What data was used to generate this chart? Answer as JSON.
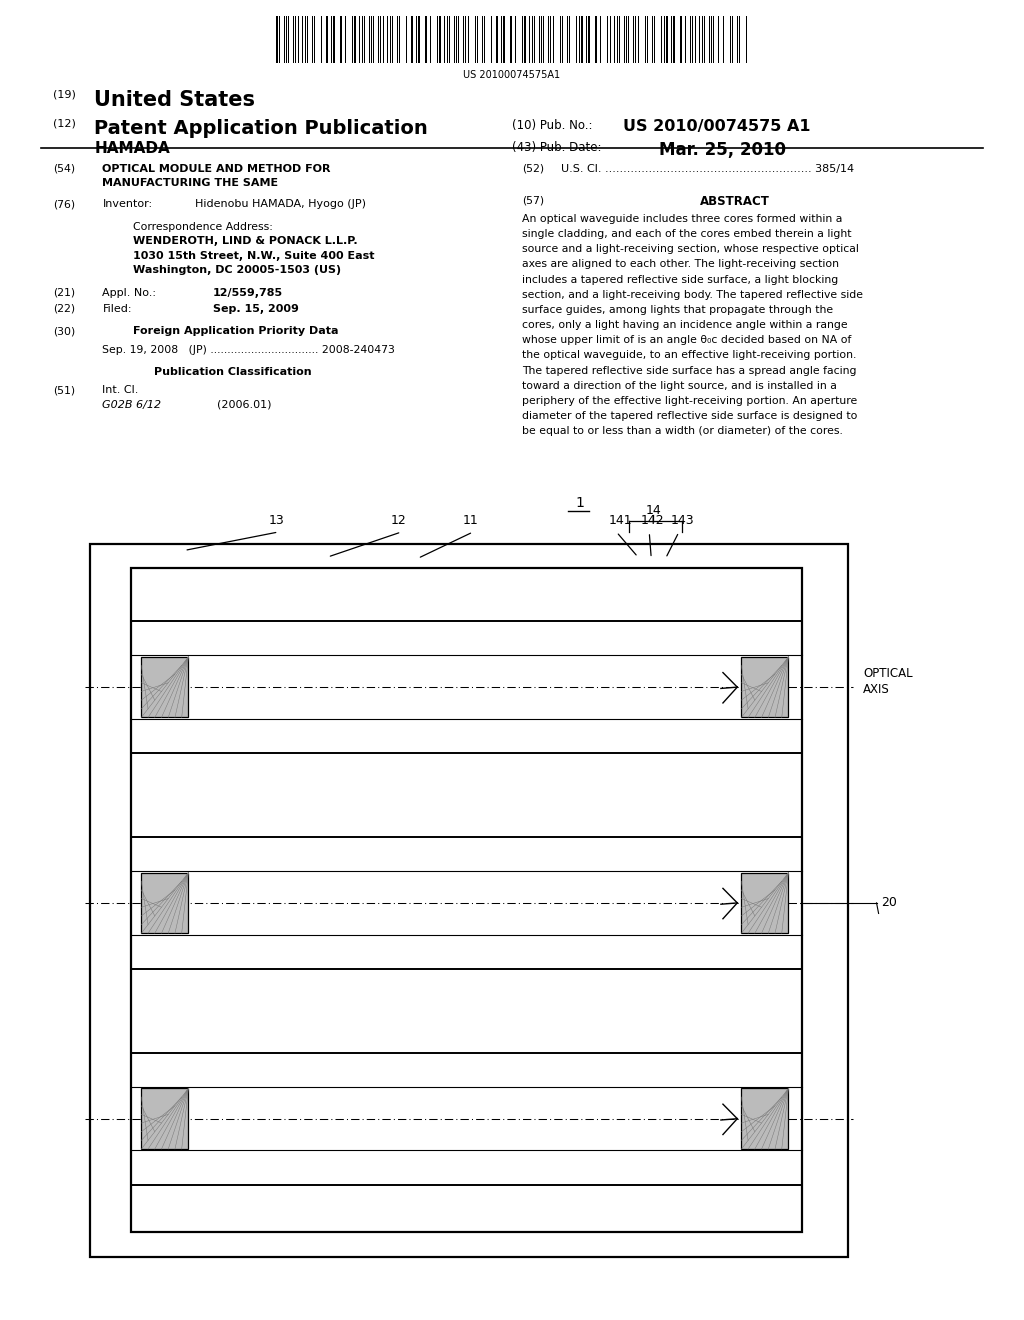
{
  "background_color": "#ffffff",
  "page_width": 10.24,
  "page_height": 13.2,
  "barcode_text": "US 20100074575A1",
  "abstract_text_lines": [
    "An optical waveguide includes three cores formed within a",
    "single cladding, and each of the cores embed therein a light",
    "source and a light-receiving section, whose respective optical",
    "axes are aligned to each other. The light-receiving section",
    "includes a tapered reflective side surface, a light blocking",
    "section, and a light-receiving body. The tapered reflective side",
    "surface guides, among lights that propagate through the",
    "cores, only a light having an incidence angle within a range",
    "whose upper limit of is an angle θ₀c decided based on NA of",
    "the optical waveguide, to an effective light-receiving portion.",
    "The tapered reflective side surface has a spread angle facing",
    "toward a direction of the light source, and is installed in a",
    "periphery of the effective light-receiving portion. An aperture",
    "diameter of the tapered reflective side surface is designed to",
    "be equal to or less than a width (or diameter) of the cores."
  ]
}
